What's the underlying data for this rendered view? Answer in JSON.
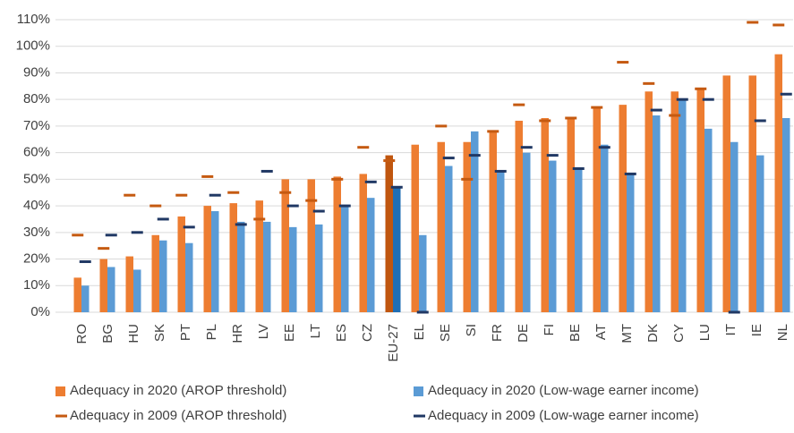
{
  "chart_data": {
    "type": "bar",
    "categories": [
      "RO",
      "BG",
      "HU",
      "SK",
      "PT",
      "PL",
      "HR",
      "LV",
      "EE",
      "LT",
      "ES",
      "CZ",
      "EU-27",
      "EL",
      "SE",
      "SI",
      "FR",
      "DE",
      "FI",
      "BE",
      "AT",
      "MT",
      "DK",
      "CY",
      "LU",
      "IT",
      "IE",
      "NL"
    ],
    "highlight": "EU-27",
    "series": [
      {
        "name": "Adequacy in 2020 (AROP threshold)",
        "kind": "bar",
        "color": "#ED7D31",
        "highlight_color": "#C0560F",
        "values": [
          13,
          20,
          21,
          29,
          36,
          40,
          41,
          42,
          50,
          50,
          51,
          52,
          59,
          63,
          64,
          64,
          68,
          72,
          73,
          73,
          77,
          78,
          83,
          83,
          84,
          89,
          89,
          97
        ]
      },
      {
        "name": "Adequacy in 2020 (Low-wage earner income)",
        "kind": "bar",
        "color": "#5B9BD5",
        "highlight_color": "#1F6FB5",
        "values": [
          10,
          17,
          16,
          27,
          26,
          38,
          34,
          34,
          32,
          33,
          40,
          43,
          47,
          29,
          55,
          68,
          53,
          60,
          57,
          54,
          63,
          52,
          74,
          80,
          69,
          64,
          59,
          73
        ]
      },
      {
        "name": "Adequacy in 2009 (AROP threshold)",
        "kind": "dash",
        "color": "#C55A11",
        "values": [
          29,
          24,
          44,
          40,
          44,
          51,
          45,
          35,
          45,
          42,
          50,
          62,
          57,
          null,
          70,
          50,
          68,
          78,
          72,
          73,
          77,
          94,
          86,
          74,
          84,
          null,
          109,
          108
        ]
      },
      {
        "name": "Adequacy in 2009 (Low-wage earner income)",
        "kind": "dash",
        "color": "#203864",
        "values": [
          19,
          29,
          30,
          35,
          32,
          44,
          33,
          53,
          40,
          38,
          40,
          49,
          47,
          0,
          58,
          59,
          53,
          62,
          59,
          54,
          62,
          52,
          76,
          80,
          80,
          0,
          72,
          82
        ]
      }
    ],
    "ylim": [
      0,
      110
    ],
    "yticks": [
      {
        "value": 0,
        "label": "0%"
      },
      {
        "value": 10,
        "label": "10%"
      },
      {
        "value": 20,
        "label": "20%"
      },
      {
        "value": 30,
        "label": "30%"
      },
      {
        "value": 40,
        "label": "40%"
      },
      {
        "value": 50,
        "label": "50%"
      },
      {
        "value": 60,
        "label": "60%"
      },
      {
        "value": 70,
        "label": "70%"
      },
      {
        "value": 80,
        "label": "80%"
      },
      {
        "value": 90,
        "label": "90%"
      },
      {
        "value": 100,
        "label": "100%"
      },
      {
        "value": 110,
        "label": "110%"
      }
    ],
    "grid": true
  }
}
